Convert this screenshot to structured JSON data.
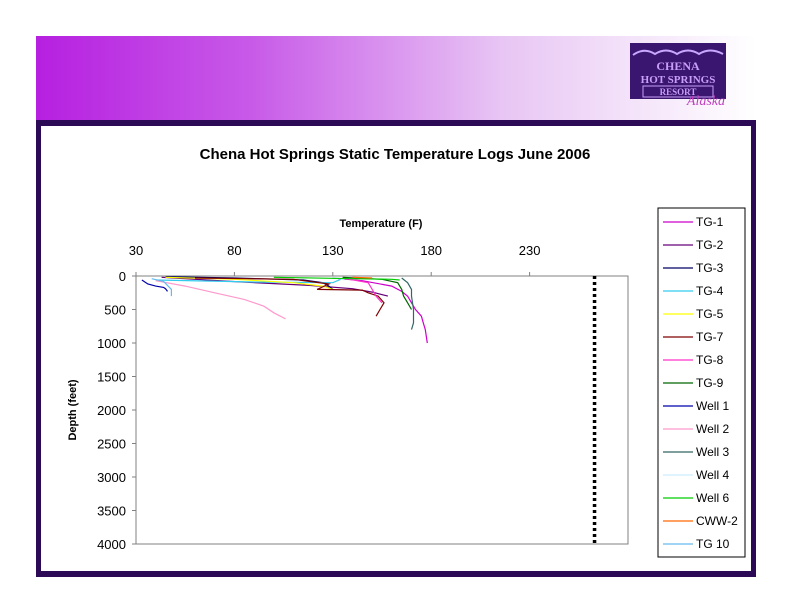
{
  "logo": {
    "line1": "CHENA",
    "line2": "HOT SPRINGS",
    "line3": "RESORT",
    "script": "Alaska"
  },
  "chart_data": {
    "type": "line",
    "title": "Chena Hot Springs Static Temperature Logs June 2006",
    "xlabel": "Temperature (F)",
    "ylabel": "Depth (feet)",
    "x_axis_position": "top",
    "y_inverted": true,
    "xlim": [
      30,
      280
    ],
    "ylim": [
      0,
      4000
    ],
    "xticks": [
      30,
      80,
      130,
      180,
      230
    ],
    "yticks": [
      0,
      500,
      1000,
      1500,
      2000,
      2500,
      3000,
      3500,
      4000
    ],
    "grid": false,
    "legend_position": "right",
    "reference_line": {
      "x": 263,
      "style": "dotted",
      "color": "#000000"
    },
    "series": [
      {
        "name": "TG-1",
        "color": "#cc00cc",
        "points": [
          [
            130,
            30
          ],
          [
            145,
            70
          ],
          [
            160,
            150
          ],
          [
            165,
            230
          ],
          [
            168,
            300
          ],
          [
            170,
            400
          ],
          [
            172,
            500
          ],
          [
            175,
            600
          ],
          [
            176,
            700
          ],
          [
            177,
            800
          ],
          [
            177.5,
            900
          ],
          [
            178,
            1000
          ]
        ]
      },
      {
        "name": "TG-2",
        "color": "#66007a",
        "points": [
          [
            43,
            20
          ],
          [
            78,
            80
          ],
          [
            118,
            140
          ],
          [
            140,
            190
          ],
          [
            150,
            240
          ],
          [
            158,
            300
          ]
        ]
      },
      {
        "name": "TG-3",
        "color": "#000066",
        "points": [
          [
            45,
            10
          ],
          [
            80,
            30
          ],
          [
            115,
            60
          ],
          [
            125,
            100
          ],
          [
            128,
            150
          ],
          [
            130,
            200
          ]
        ]
      },
      {
        "name": "TG-4",
        "color": "#33ccee",
        "points": [
          [
            40,
            60
          ],
          [
            90,
            90
          ],
          [
            130,
            100
          ],
          [
            134,
            50
          ]
        ]
      },
      {
        "name": "TG-5",
        "color": "#ffff00",
        "points": [
          [
            45,
            20
          ],
          [
            80,
            50
          ],
          [
            110,
            100
          ],
          [
            125,
            150
          ],
          [
            130,
            200
          ]
        ]
      },
      {
        "name": "TG-7",
        "color": "#800000",
        "points": [
          [
            60,
            30
          ],
          [
            110,
            50
          ],
          [
            128,
            120
          ],
          [
            122,
            200
          ],
          [
            145,
            210
          ],
          [
            148,
            250
          ],
          [
            153,
            300
          ],
          [
            156,
            400
          ],
          [
            154,
            500
          ],
          [
            152,
            600
          ]
        ]
      },
      {
        "name": "TG-8",
        "color": "#ff33cc",
        "points": [
          [
            135,
            30
          ],
          [
            148,
            100
          ],
          [
            150,
            200
          ],
          [
            152,
            300
          ],
          [
            155,
            400
          ]
        ]
      },
      {
        "name": "TG-9",
        "color": "#006600",
        "points": [
          [
            135,
            20
          ],
          [
            155,
            50
          ],
          [
            163,
            100
          ],
          [
            165,
            200
          ],
          [
            166,
            300
          ],
          [
            168,
            400
          ],
          [
            170,
            500
          ]
        ]
      },
      {
        "name": "Well 1",
        "color": "#0000aa",
        "points": [
          [
            33,
            60
          ],
          [
            36,
            120
          ],
          [
            40,
            150
          ],
          [
            44,
            170
          ],
          [
            45,
            190
          ],
          [
            46,
            230
          ]
        ]
      },
      {
        "name": "Well 2",
        "color": "#ff99cc",
        "points": [
          [
            40,
            70
          ],
          [
            55,
            150
          ],
          [
            70,
            250
          ],
          [
            85,
            350
          ],
          [
            95,
            450
          ],
          [
            100,
            550
          ],
          [
            106,
            640
          ]
        ]
      },
      {
        "name": "Well 3",
        "color": "#336666",
        "points": [
          [
            165,
            30
          ],
          [
            168,
            100
          ],
          [
            170,
            200
          ],
          [
            170,
            300
          ],
          [
            171,
            500
          ],
          [
            171,
            600
          ],
          [
            171,
            700
          ],
          [
            170,
            800
          ]
        ]
      },
      {
        "name": "Well 4",
        "color": "#cceeff",
        "points": [
          [
            130,
            20
          ],
          [
            134,
            40
          ],
          [
            136,
            60
          ]
        ]
      },
      {
        "name": "Well 6",
        "color": "#00cc00",
        "points": [
          [
            100,
            20
          ],
          [
            140,
            40
          ],
          [
            160,
            50
          ],
          [
            164,
            60
          ]
        ]
      },
      {
        "name": "CWW-2",
        "color": "#ff6600",
        "points": [
          [
            140,
            20
          ],
          [
            150,
            30
          ]
        ]
      },
      {
        "name": "TG 10",
        "color": "#66bbee",
        "points": [
          [
            38,
            40
          ],
          [
            44,
            80
          ],
          [
            48,
            200
          ],
          [
            48,
            300
          ]
        ]
      }
    ]
  }
}
